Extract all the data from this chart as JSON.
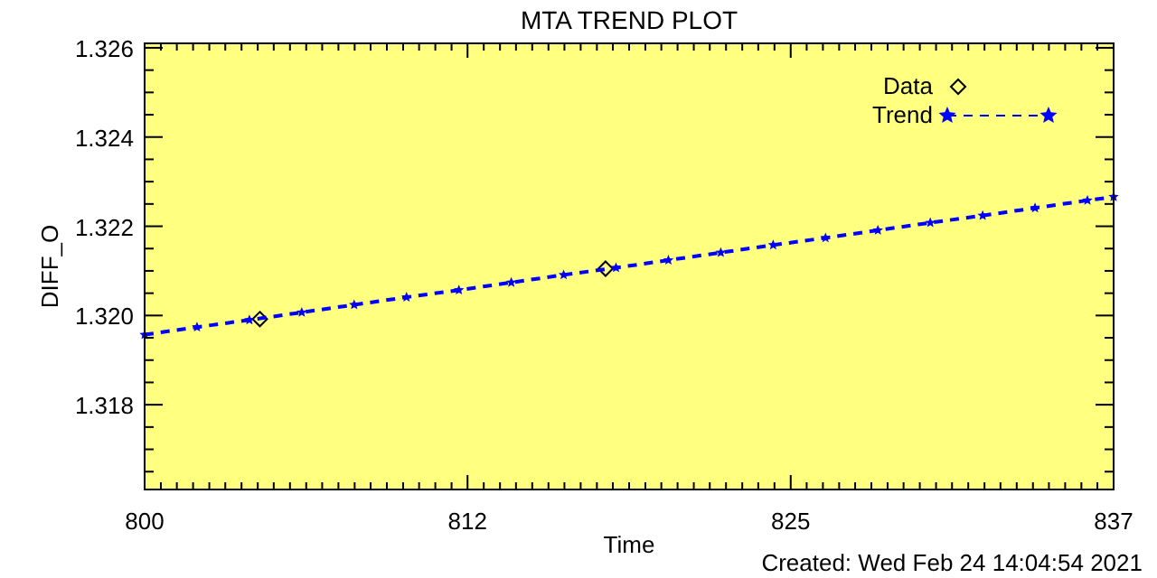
{
  "chart_data": {
    "type": "line",
    "title": "MTA TREND PLOT",
    "xlabel": "Time",
    "ylabel": "DIFF_O",
    "xlim": [
      800,
      837
    ],
    "xticks": [
      800,
      {
        "value": 800.62,
        "label": null
      },
      {
        "value": 801.23,
        "label": null
      },
      {
        "value": 801.85,
        "label": null
      },
      {
        "value": 802.47,
        "label": null
      },
      {
        "value": 803.08,
        "label": null
      },
      {
        "value": 803.7,
        "label": null
      },
      {
        "value": 804.32,
        "label": null
      },
      {
        "value": 804.93,
        "label": null
      },
      {
        "value": 805.55,
        "label": null
      },
      {
        "value": 806.17,
        "label": null
      },
      {
        "value": 806.78,
        "label": null
      },
      {
        "value": 807.4,
        "label": null
      },
      {
        "value": 808.02,
        "label": null
      },
      {
        "value": 808.63,
        "label": null
      },
      {
        "value": 809.25,
        "label": null
      },
      {
        "value": 809.87,
        "label": null
      },
      {
        "value": 810.48,
        "label": null
      },
      {
        "value": 811.1,
        "label": null
      },
      {
        "value": 811.72,
        "label": null
      },
      {
        "value": 812.33,
        "label": "812"
      },
      {
        "value": 812.95,
        "label": null
      },
      {
        "value": 813.57,
        "label": null
      },
      {
        "value": 814.18,
        "label": null
      },
      {
        "value": 814.8,
        "label": null
      },
      {
        "value": 815.42,
        "label": null
      },
      {
        "value": 816.03,
        "label": null
      },
      {
        "value": 816.65,
        "label": null
      },
      {
        "value": 817.27,
        "label": null
      },
      {
        "value": 817.88,
        "label": null
      },
      {
        "value": 818.5,
        "label": null
      },
      {
        "value": 819.12,
        "label": null
      },
      {
        "value": 819.73,
        "label": null
      },
      {
        "value": 820.35,
        "label": null
      },
      {
        "value": 820.97,
        "label": null
      },
      {
        "value": 821.58,
        "label": null
      },
      {
        "value": 822.2,
        "label": null
      },
      {
        "value": 822.82,
        "label": null
      },
      {
        "value": 823.43,
        "label": null
      },
      {
        "value": 824.05,
        "label": null
      },
      {
        "value": 824.67,
        "label": "825"
      },
      {
        "value": 825.28,
        "label": null
      },
      {
        "value": 825.9,
        "label": null
      },
      {
        "value": 826.52,
        "label": null
      },
      {
        "value": 827.13,
        "label": null
      },
      {
        "value": 827.75,
        "label": null
      },
      {
        "value": 828.37,
        "label": null
      },
      {
        "value": 828.98,
        "label": null
      },
      {
        "value": 829.6,
        "label": null
      },
      {
        "value": 830.22,
        "label": null
      },
      {
        "value": 830.83,
        "label": null
      },
      {
        "value": 831.45,
        "label": null
      },
      {
        "value": 832.07,
        "label": null
      },
      {
        "value": 832.68,
        "label": null
      },
      {
        "value": 833.3,
        "label": null
      },
      {
        "value": 833.92,
        "label": null
      },
      {
        "value": 834.53,
        "label": null
      },
      {
        "value": 835.15,
        "label": null
      },
      {
        "value": 835.77,
        "label": null
      },
      {
        "value": 836.38,
        "label": null
      },
      837
    ],
    "ylim": [
      1.3161,
      1.3261
    ],
    "yticks": [
      {
        "value": 1.3165,
        "label": null
      },
      {
        "value": 1.317,
        "label": null
      },
      {
        "value": 1.3175,
        "label": null
      },
      1.318,
      {
        "value": 1.3185,
        "label": null
      },
      {
        "value": 1.319,
        "label": null
      },
      {
        "value": 1.3195,
        "label": null
      },
      {
        "value": 1.32,
        "label": "1.320"
      },
      {
        "value": 1.3205,
        "label": null
      },
      {
        "value": 1.321,
        "label": null
      },
      {
        "value": 1.3215,
        "label": null
      },
      1.322,
      {
        "value": 1.3225,
        "label": null
      },
      {
        "value": 1.323,
        "label": null
      },
      {
        "value": 1.3235,
        "label": null
      },
      1.324,
      {
        "value": 1.3245,
        "label": null
      },
      {
        "value": 1.325,
        "label": null
      },
      {
        "value": 1.3255,
        "label": null
      },
      1.326
    ],
    "series": [
      {
        "name": "Data",
        "type": "scatter",
        "marker": "diamond",
        "color": "#000000",
        "x": [
          804.4,
          817.6
        ],
        "values": [
          1.31992,
          1.32105
        ]
      },
      {
        "name": "Trend",
        "marker": "star",
        "line_style": "dashed",
        "color": "#0000ff",
        "x": [
          800,
          802,
          804,
          806,
          808,
          810,
          812,
          814,
          816,
          818,
          820,
          822,
          824,
          826,
          828,
          830,
          832,
          834,
          836,
          837
        ],
        "values": [
          1.31957,
          1.31974,
          1.3199,
          1.32007,
          1.32024,
          1.32041,
          1.32057,
          1.32074,
          1.32091,
          1.32107,
          1.32124,
          1.32141,
          1.32158,
          1.32174,
          1.32191,
          1.32208,
          1.32224,
          1.32241,
          1.32258,
          1.32266
        ]
      }
    ],
    "legend": "top right",
    "annotations": [
      "Created: Wed Feb 24 14:04:54 2021"
    ]
  }
}
